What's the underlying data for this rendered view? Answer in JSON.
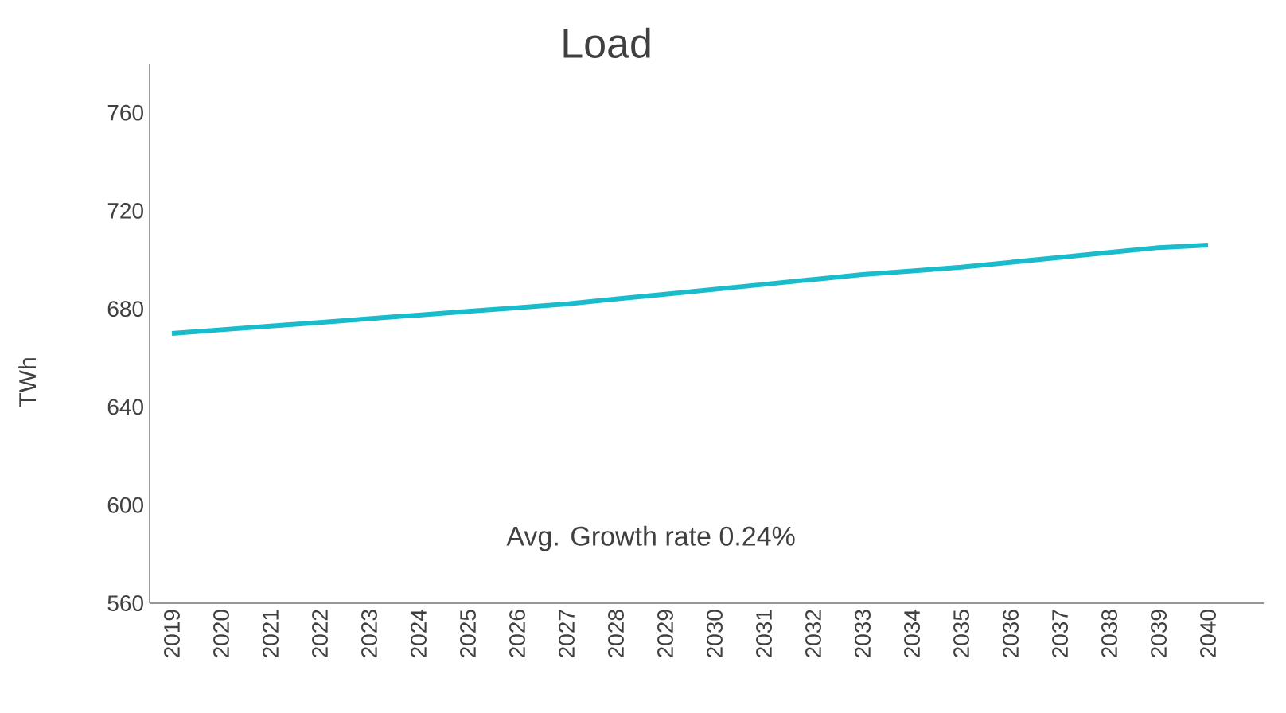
{
  "chart_data": {
    "type": "line",
    "title": "Load",
    "ylabel": "TWh",
    "categories": [
      "2019",
      "2020",
      "2021",
      "2022",
      "2023",
      "2024",
      "2025",
      "2026",
      "2027",
      "2028",
      "2029",
      "2030",
      "2031",
      "2032",
      "2033",
      "2034",
      "2035",
      "2036",
      "2037",
      "2038",
      "2039",
      "2040"
    ],
    "series": [
      {
        "color": "#1abccc",
        "values": [
          670,
          671.5,
          673,
          674.5,
          676,
          677.5,
          679,
          680.5,
          682,
          684,
          686,
          688,
          690,
          692,
          694,
          695.5,
          697,
          699,
          701,
          703,
          705,
          706
        ]
      }
    ],
    "ylim": [
      560,
      780
    ],
    "yticks": [
      560,
      600,
      640,
      680,
      720,
      760
    ],
    "annotations": [
      "Avg. Growth rate 0.24%"
    ],
    "grid": false,
    "marker": "none",
    "line_style": "solid"
  }
}
